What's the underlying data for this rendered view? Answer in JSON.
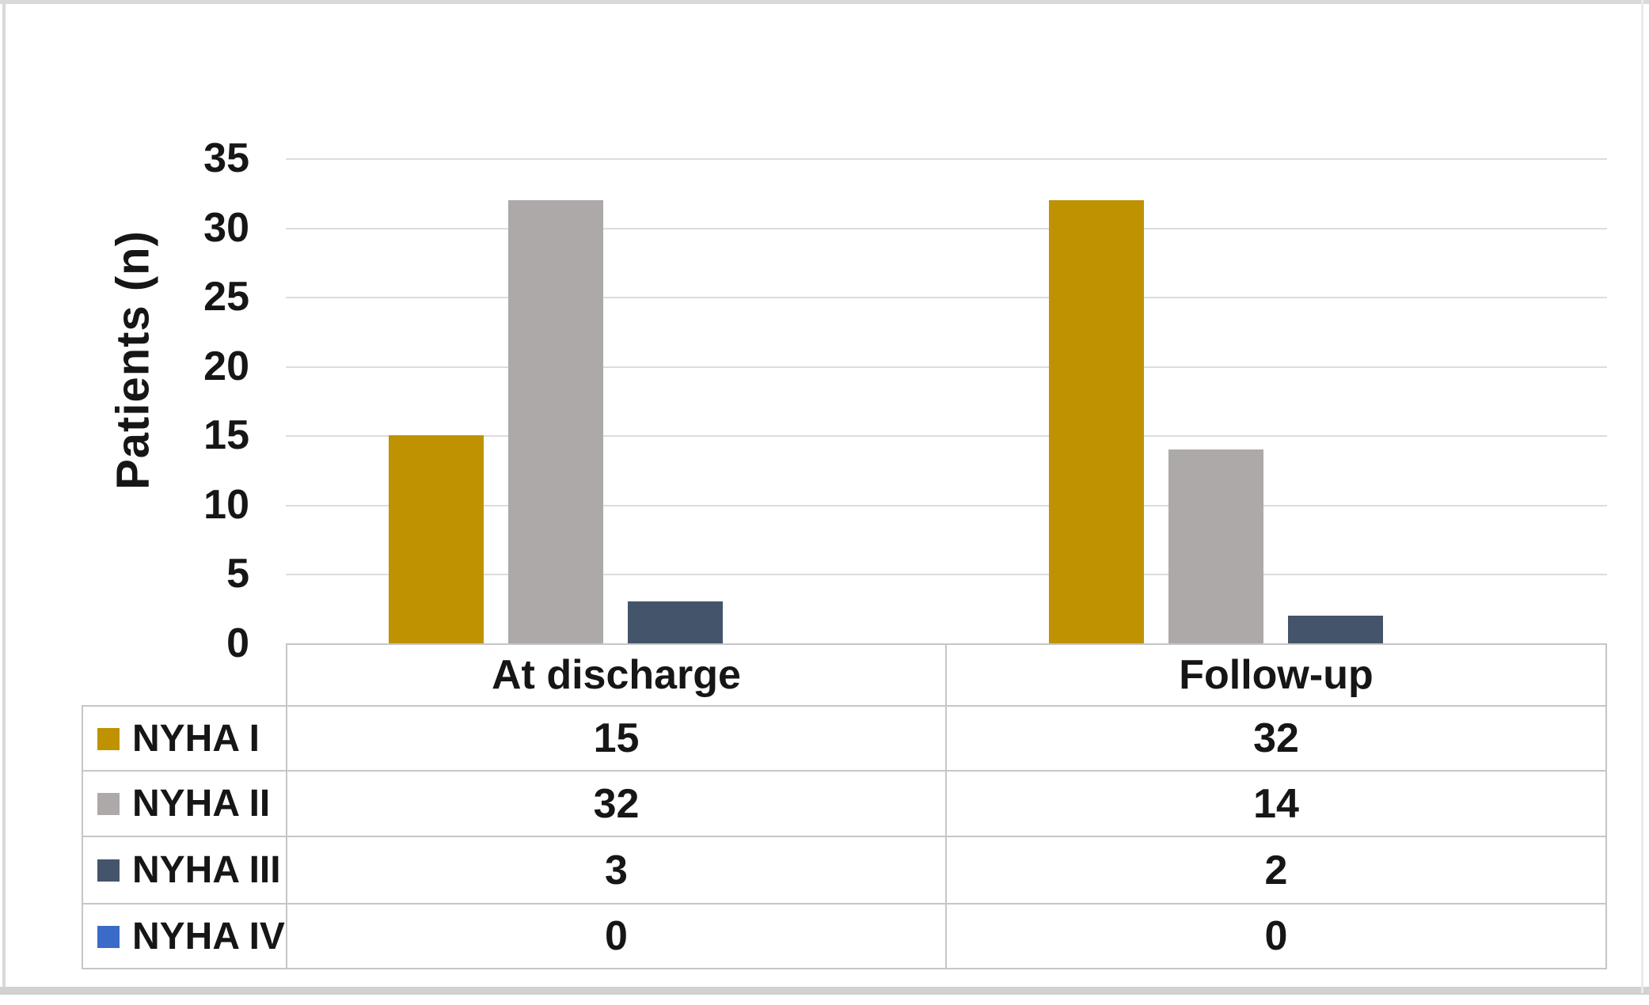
{
  "chart_data": {
    "type": "bar",
    "title": "",
    "ylabel": "Patients (n)",
    "categories": [
      "At discharge",
      "Follow-up"
    ],
    "series": [
      {
        "name": "NYHA I",
        "color": "#BF9202",
        "values": [
          15,
          32
        ]
      },
      {
        "name": "NYHA II",
        "color": "#ACA9A8",
        "values": [
          32,
          14
        ]
      },
      {
        "name": "NYHA III",
        "color": "#44546A",
        "values": [
          3,
          2
        ]
      },
      {
        "name": "NYHA IV",
        "color": "#3B6BC8",
        "values": [
          0,
          0
        ]
      }
    ],
    "ylim": [
      0,
      35
    ],
    "yticks": [
      0,
      5,
      10,
      15,
      20,
      25,
      30,
      35
    ],
    "ytick_step": 5,
    "grid": true,
    "legend_position": "data-table-left-column",
    "data_table": true
  },
  "colors": {
    "grid_line": "#DCDCDC",
    "table_border": "#C6C6C6",
    "text": "#161616",
    "frame": "#D9D9D9",
    "background": "#FFFFFF"
  }
}
